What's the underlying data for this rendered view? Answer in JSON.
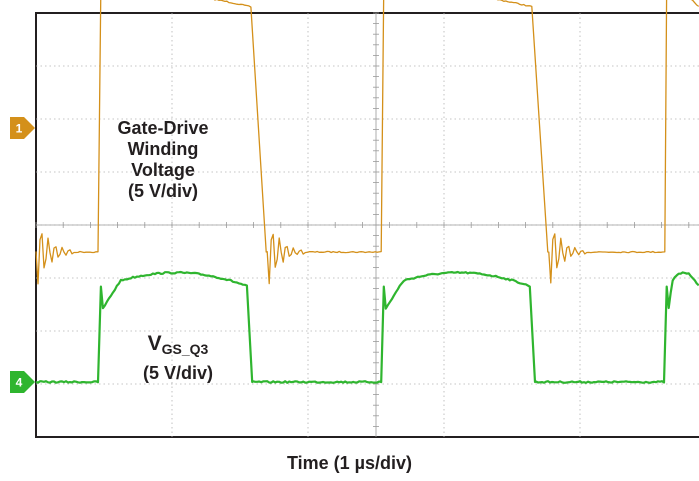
{
  "chart_data": {
    "type": "line",
    "xlabel": "Time (1 µs/div)",
    "x_divisions": 10,
    "y_divisions": 8,
    "grid": true,
    "channels": [
      {
        "id": "1",
        "color": "#d4901a",
        "label_lines": [
          "Gate-Drive",
          "Winding",
          "Voltage",
          "(5 V/div)"
        ],
        "levels_div": {
          "high": 4.92,
          "low": 0,
          "marker": 2.34
        },
        "edges_div": [
          {
            "type": "rise",
            "x": 0.47
          },
          {
            "type": "fall",
            "x": 1.59
          },
          {
            "type": "rise",
            "x": 2.55
          },
          {
            "type": "fall",
            "x": 3.66
          },
          {
            "type": "rise",
            "x": 4.63
          }
        ]
      },
      {
        "id": "4",
        "color": "#2fb52f",
        "label_main": "V",
        "label_sub": "GS_Q3",
        "label_scale": "(5 V/div)",
        "levels_div": {
          "high": 1.95,
          "low": 0,
          "marker": 0
        },
        "edges_div": [
          {
            "type": "rise",
            "x": 0.47
          },
          {
            "type": "fall",
            "x": 1.56
          },
          {
            "type": "rise",
            "x": 2.55
          },
          {
            "type": "fall",
            "x": 3.64
          },
          {
            "type": "rise",
            "x": 4.63
          }
        ]
      }
    ]
  }
}
